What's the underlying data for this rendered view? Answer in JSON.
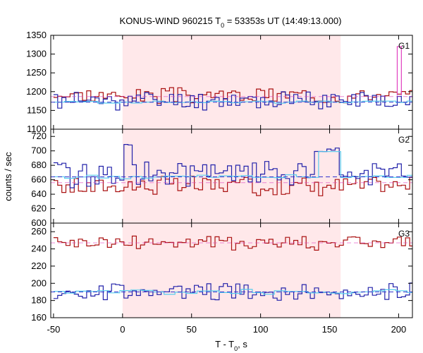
{
  "chart_data": {
    "type": "line",
    "title": "KONUS-WIND 960215 T",
    "title_sub": "0",
    "title_rest": " = 53353s UT (14:49:13.000)",
    "xlabel": "T - T",
    "xlabel_sub": "0",
    "xlabel_rest": ", s",
    "ylabel": "counts / sec",
    "xlim": [
      -52,
      210
    ],
    "x_ticks": [
      -50,
      0,
      50,
      100,
      150,
      200
    ],
    "shaded_interval": [
      0,
      158
    ],
    "colors": {
      "shade": "#ffe8ea",
      "red": "#aa1111",
      "blue": "#2222aa",
      "cyan": "#55ccee",
      "pink": "#e040c0",
      "fit": "#3333cc"
    },
    "panels": [
      {
        "label": "G1",
        "ylim": [
          1100,
          1350
        ],
        "y_ticks": [
          1100,
          1150,
          1200,
          1250,
          1300,
          1350
        ],
        "bin_start": -50,
        "bin_width": 3,
        "red_base": 1190,
        "red_amp": 18,
        "red_seed": 3,
        "blue_base": 1177,
        "blue_amp": 22,
        "blue_seed": 11,
        "red_fit": 1187,
        "blue_fit": 1172,
        "spikes": [
          {
            "x": 200,
            "y": 1320
          }
        ],
        "blue_bumps": []
      },
      {
        "label": "G2",
        "ylim": [
          600,
          730
        ],
        "y_ticks": [
          600,
          620,
          640,
          660,
          680,
          700,
          720
        ],
        "bin_start": -50,
        "bin_width": 3,
        "red_base": 652,
        "red_amp": 12,
        "red_seed": 17,
        "blue_base": 668,
        "blue_amp": 16,
        "blue_seed": 29,
        "red_fit": 656,
        "blue_fit": 664,
        "spikes": [],
        "blue_bumps": [
          {
            "from": 0,
            "to": 5,
            "y": 712
          },
          {
            "from": 137,
            "to": 157,
            "y": 705
          }
        ]
      },
      {
        "label": "G3",
        "ylim": [
          160,
          270
        ],
        "y_ticks": [
          160,
          180,
          200,
          220,
          240,
          260
        ],
        "bin_start": -50,
        "bin_width": 3,
        "red_base": 247,
        "red_amp": 8,
        "red_seed": 41,
        "blue_base": 190,
        "blue_amp": 9,
        "blue_seed": 53,
        "red_fit": 247,
        "blue_fit": 190,
        "spikes": [],
        "blue_bumps": []
      }
    ]
  }
}
